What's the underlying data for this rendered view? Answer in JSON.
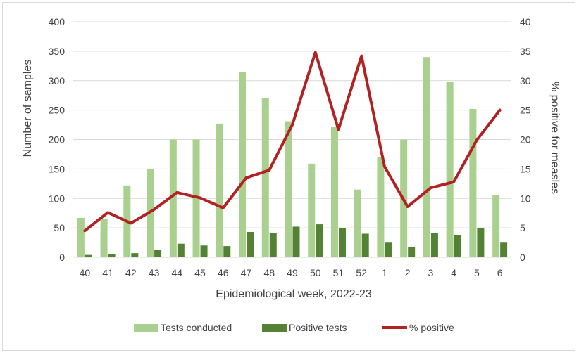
{
  "chart_data": {
    "type": "bar",
    "categories": [
      "40",
      "41",
      "42",
      "43",
      "44",
      "45",
      "46",
      "47",
      "48",
      "49",
      "50",
      "51",
      "52",
      "1",
      "2",
      "3",
      "4",
      "5",
      "6"
    ],
    "series": [
      {
        "name": "Tests conducted",
        "type": "bar",
        "axis": "left",
        "color": "#a9d08e",
        "values": [
          67,
          65,
          122,
          150,
          200,
          200,
          227,
          314,
          271,
          231,
          159,
          222,
          115,
          170,
          200,
          340,
          298,
          252,
          105
        ]
      },
      {
        "name": "Positive tests",
        "type": "bar",
        "axis": "left",
        "color": "#548235",
        "values": [
          4,
          6,
          7,
          13,
          23,
          20,
          19,
          43,
          41,
          52,
          56,
          49,
          40,
          26,
          18,
          41,
          38,
          50,
          26
        ]
      },
      {
        "name": "% positive",
        "type": "line",
        "axis": "right",
        "color": "#b22222",
        "values": [
          4.5,
          7.6,
          5.8,
          8.1,
          11.0,
          10.1,
          8.4,
          13.5,
          14.8,
          22.5,
          34.8,
          21.7,
          34.2,
          15.4,
          8.6,
          11.8,
          12.8,
          19.9,
          25.0
        ]
      }
    ],
    "xlabel": "Epidemiological week, 2022-23",
    "ylabel": "Number of samples",
    "y2label": "% positive for measles",
    "ylim": [
      0,
      400
    ],
    "y2lim": [
      0,
      40
    ],
    "yticks": [
      "0",
      "50",
      "100",
      "150",
      "200",
      "250",
      "300",
      "350",
      "400"
    ],
    "y2ticks": [
      "0",
      "5",
      "10",
      "15",
      "20",
      "25",
      "30",
      "35",
      "40"
    ],
    "grid": true,
    "legend": "bottom"
  }
}
